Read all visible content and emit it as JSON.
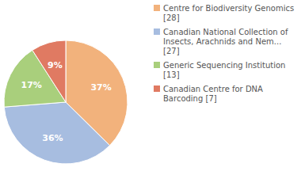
{
  "chart_data": {
    "type": "pie",
    "categories": [
      "Centre for Biodiversity Genomics [28]",
      "Canadian National Collection of Insects, Arachnids and Nem... [27]",
      "Generic Sequencing Institution [13]",
      "Canadian Centre for DNA Barcoding [7]"
    ],
    "values": [
      37,
      36,
      17,
      9
    ],
    "value_labels": [
      "37%",
      "36%",
      "17%",
      "9%"
    ],
    "colors": [
      "#f2b27c",
      "#a7bde0",
      "#a9cf7c",
      "#e07a62"
    ],
    "data_labels": true,
    "legend": "upper right"
  }
}
